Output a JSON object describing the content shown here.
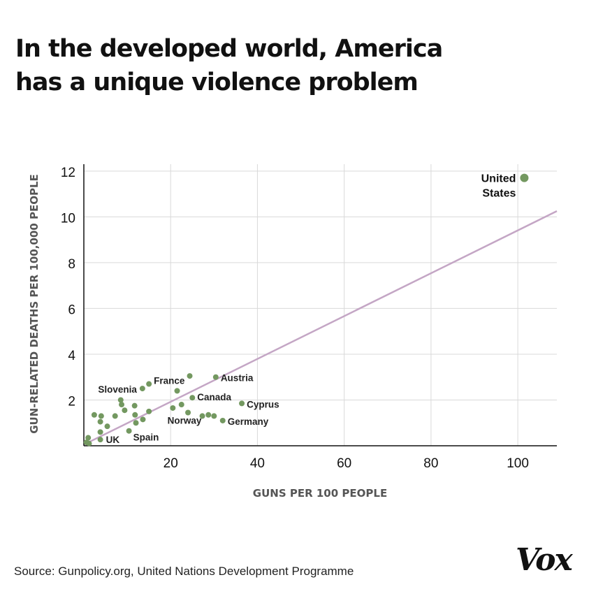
{
  "header": {
    "title_line1": "In the developed world, America",
    "title_line2": "has a unique violence problem"
  },
  "footer": {
    "source": "Source: Gunpolicy.org, United Nations Development Programme",
    "logo": "Vox"
  },
  "colors": {
    "point": "#739860",
    "trend": "#c4a6c5",
    "grid": "#d9d9d9",
    "axis": "#111111",
    "text": "#111111"
  },
  "chart_data": {
    "type": "scatter",
    "title": "In the developed world, America has a unique violence problem",
    "xlabel": "GUNS PER 100 PEOPLE",
    "ylabel": "GUN-RELATED DEATHS PER 100,000 PEOPLE",
    "xlim": [
      0,
      109
    ],
    "ylim": [
      0,
      12.3
    ],
    "xticks": [
      20,
      40,
      60,
      80,
      100
    ],
    "yticks": [
      2,
      4,
      6,
      8,
      10,
      12
    ],
    "grid": true,
    "trendline": {
      "x": [
        0,
        109
      ],
      "y": [
        0.05,
        10.25
      ]
    },
    "points": [
      {
        "label": "United States",
        "x": 101.5,
        "y": 11.7
      },
      {
        "label": "Austria",
        "x": 30.4,
        "y": 3.0
      },
      {
        "label": "France",
        "x": 15.0,
        "y": 2.7
      },
      {
        "label": "Slovenia",
        "x": 13.5,
        "y": 2.5
      },
      {
        "label": "Canada",
        "x": 25.0,
        "y": 2.1
      },
      {
        "label": "Cyprus",
        "x": 36.4,
        "y": 1.85
      },
      {
        "label": "Norway",
        "x": 24.0,
        "y": 1.45
      },
      {
        "label": "Germany",
        "x": 32.0,
        "y": 1.1
      },
      {
        "label": "Spain",
        "x": 10.4,
        "y": 0.65
      },
      {
        "label": "UK",
        "x": 3.8,
        "y": 0.27
      },
      {
        "label": "",
        "x": 24.4,
        "y": 3.05
      },
      {
        "label": "",
        "x": 21.5,
        "y": 2.4
      },
      {
        "label": "",
        "x": 20.5,
        "y": 1.65
      },
      {
        "label": "",
        "x": 22.5,
        "y": 1.8
      },
      {
        "label": "",
        "x": 27.3,
        "y": 1.3
      },
      {
        "label": "",
        "x": 28.7,
        "y": 1.35
      },
      {
        "label": "",
        "x": 30.0,
        "y": 1.3
      },
      {
        "label": "",
        "x": 8.5,
        "y": 2.0
      },
      {
        "label": "",
        "x": 8.7,
        "y": 1.8
      },
      {
        "label": "",
        "x": 9.4,
        "y": 1.55
      },
      {
        "label": "",
        "x": 11.7,
        "y": 1.75
      },
      {
        "label": "",
        "x": 11.8,
        "y": 1.35
      },
      {
        "label": "",
        "x": 12.0,
        "y": 1.0
      },
      {
        "label": "",
        "x": 13.6,
        "y": 1.15
      },
      {
        "label": "",
        "x": 15.0,
        "y": 1.5
      },
      {
        "label": "",
        "x": 2.4,
        "y": 1.35
      },
      {
        "label": "",
        "x": 4.0,
        "y": 1.3
      },
      {
        "label": "",
        "x": 3.8,
        "y": 1.05
      },
      {
        "label": "",
        "x": 5.4,
        "y": 0.85
      },
      {
        "label": "",
        "x": 7.2,
        "y": 1.3
      },
      {
        "label": "",
        "x": 3.8,
        "y": 0.6
      },
      {
        "label": "",
        "x": 1.0,
        "y": 0.35
      },
      {
        "label": "",
        "x": 0.6,
        "y": 0.15
      },
      {
        "label": "",
        "x": 1.2,
        "y": 0.1
      }
    ]
  }
}
